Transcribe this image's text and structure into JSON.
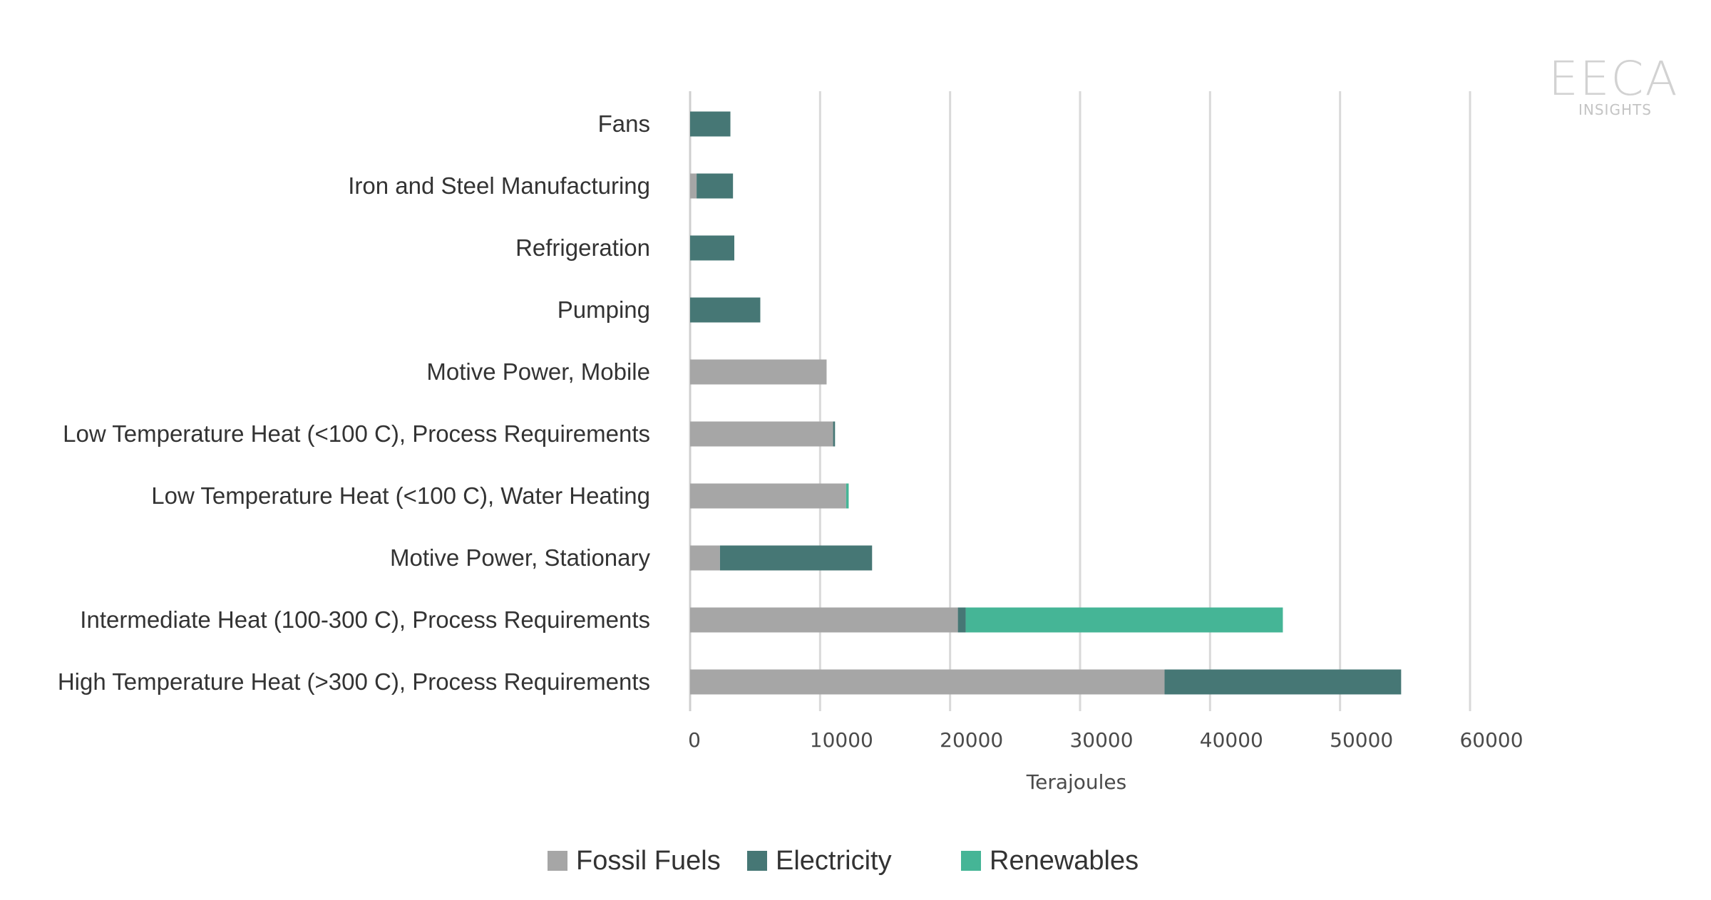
{
  "logo": {
    "word": "EECA",
    "sub": "INSIGHTS"
  },
  "chart_data": {
    "type": "bar",
    "orientation": "horizontal",
    "stacked": true,
    "categories": [
      "Fans",
      "Iron and Steel Manufacturing",
      "Refrigeration",
      "Pumping",
      "Motive Power, Mobile",
      "Low Temperature Heat (<100 C), Process Requirements",
      "Low Temperature Heat (<100 C), Water Heating",
      "Motive Power, Stationary",
      "Intermediate Heat (100-300 C), Process Requirements",
      "High Temperature Heat (>300 C), Process Requirements"
    ],
    "series": [
      {
        "name": "Fossil Fuels",
        "color": "#a6a6a6",
        "values": [
          0,
          500,
          0,
          0,
          10500,
          11000,
          12000,
          2300,
          20600,
          36500
        ]
      },
      {
        "name": "Electricity",
        "color": "#467775",
        "values": [
          3100,
          2800,
          3400,
          5400,
          0,
          150,
          0,
          11700,
          600,
          18200
        ]
      },
      {
        "name": "Renewables",
        "color": "#45b596",
        "values": [
          0,
          0,
          0,
          0,
          0,
          0,
          200,
          0,
          24400,
          0
        ]
      }
    ],
    "xlabel": "Terajoules",
    "xlim": [
      0,
      60000
    ],
    "xticks": [
      "0",
      "10000",
      "20000",
      "30000",
      "40000",
      "50000",
      "60000"
    ],
    "grid": "vertical",
    "legend_position": "bottom"
  }
}
